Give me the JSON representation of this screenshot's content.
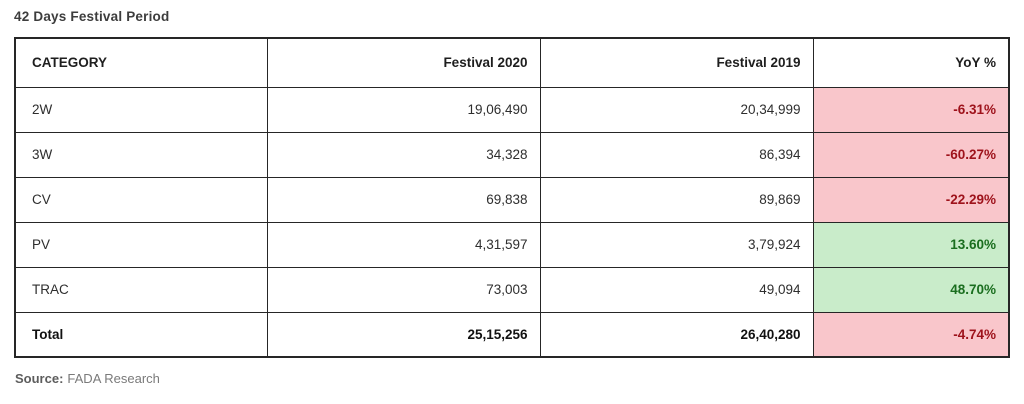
{
  "page": {
    "title": "42 Days Festival Period",
    "source_label": "Source:",
    "source_value": "FADA Research"
  },
  "colors": {
    "negative_bg": "#f9c6cb",
    "negative_text": "#9e121b",
    "positive_bg": "#c9ecca",
    "positive_text": "#1a6e1f"
  },
  "table": {
    "headers": [
      "CATEGORY",
      "Festival 2020",
      "Festival 2019",
      "YoY %"
    ],
    "rows": [
      {
        "category": "2W",
        "festival_2020": "19,06,490",
        "festival_2019": "20,34,999",
        "yoy": "-6.31%",
        "trend": "negative",
        "is_total": false
      },
      {
        "category": "3W",
        "festival_2020": "34,328",
        "festival_2019": "86,394",
        "yoy": "-60.27%",
        "trend": "negative",
        "is_total": false
      },
      {
        "category": "CV",
        "festival_2020": "69,838",
        "festival_2019": "89,869",
        "yoy": "-22.29%",
        "trend": "negative",
        "is_total": false
      },
      {
        "category": "PV",
        "festival_2020": "4,31,597",
        "festival_2019": "3,79,924",
        "yoy": "13.60%",
        "trend": "positive",
        "is_total": false
      },
      {
        "category": "TRAC",
        "festival_2020": "73,003",
        "festival_2019": "49,094",
        "yoy": "48.70%",
        "trend": "positive",
        "is_total": false
      },
      {
        "category": "Total",
        "festival_2020": "25,15,256",
        "festival_2019": "26,40,280",
        "yoy": "-4.74%",
        "trend": "negative",
        "is_total": true
      }
    ]
  },
  "chart_data": {
    "type": "table",
    "title": "42 Days Festival Period",
    "columns": [
      "CATEGORY",
      "Festival 2020",
      "Festival 2019",
      "YoY %"
    ],
    "rows": [
      [
        "2W",
        "19,06,490",
        "20,34,999",
        "-6.31%"
      ],
      [
        "3W",
        "34,328",
        "86,394",
        "-60.27%"
      ],
      [
        "CV",
        "69,838",
        "89,869",
        "-22.29%"
      ],
      [
        "PV",
        "4,31,597",
        "3,79,924",
        "13.60%"
      ],
      [
        "TRAC",
        "73,003",
        "49,094",
        "48.70%"
      ],
      [
        "Total",
        "25,15,256",
        "26,40,280",
        "-4.74%"
      ]
    ],
    "numeric_rows": [
      {
        "category": "2W",
        "festival_2020": 1906490,
        "festival_2019": 2034999,
        "yoy_percent": -6.31
      },
      {
        "category": "3W",
        "festival_2020": 34328,
        "festival_2019": 86394,
        "yoy_percent": -60.27
      },
      {
        "category": "CV",
        "festival_2020": 69838,
        "festival_2019": 89869,
        "yoy_percent": -22.29
      },
      {
        "category": "PV",
        "festival_2020": 431597,
        "festival_2019": 379924,
        "yoy_percent": 13.6
      },
      {
        "category": "TRAC",
        "festival_2020": 73003,
        "festival_2019": 49094,
        "yoy_percent": 48.7
      },
      {
        "category": "Total",
        "festival_2020": 2515256,
        "festival_2019": 2640280,
        "yoy_percent": -4.74
      }
    ],
    "source": "FADA Research",
    "legend_position": "none",
    "grid": true
  }
}
